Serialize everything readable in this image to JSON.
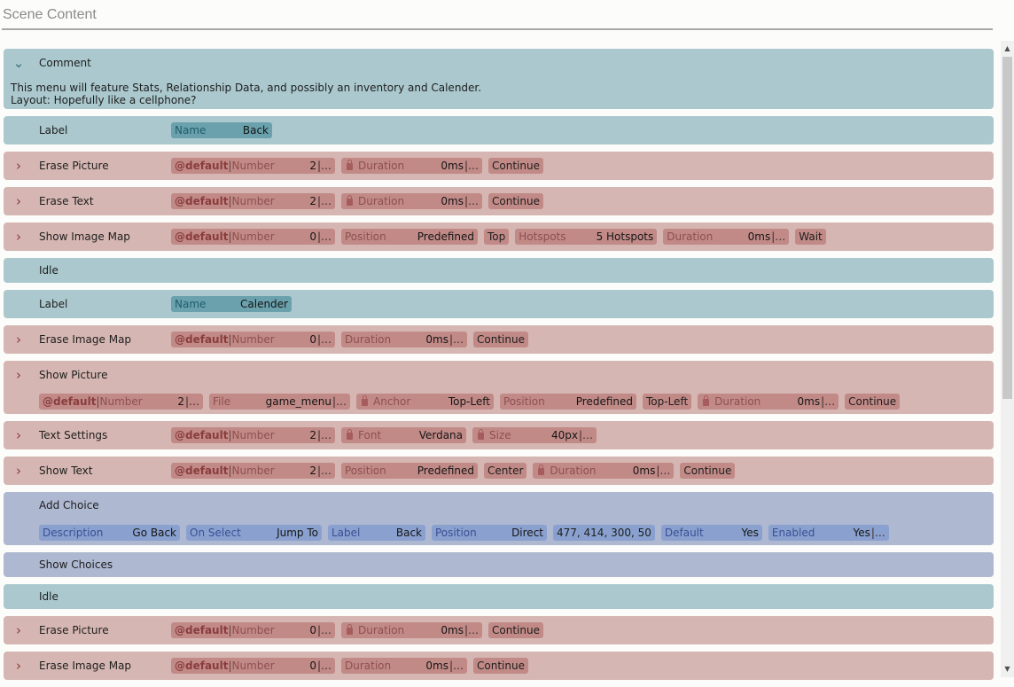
{
  "header": {
    "title": "Scene Content"
  },
  "comment": {
    "name": "Comment",
    "line1": "This menu will feature Stats, Relationship Data, and possibly an inventory and Calender.",
    "line2": "Layout: Hopefully like a cellphone?"
  },
  "label1": {
    "name": "Label",
    "p_name_label": "Name",
    "p_name_value": "Back"
  },
  "erase_picture_1": {
    "name": "Erase Picture",
    "ph": "@default",
    "number_label": "Number",
    "number_value": "2",
    "duration_label": "Duration",
    "duration_value": "0ms",
    "continue": "Continue"
  },
  "erase_text": {
    "name": "Erase Text",
    "ph": "@default",
    "number_label": "Number",
    "number_value": "2",
    "duration_label": "Duration",
    "duration_value": "0ms",
    "continue": "Continue"
  },
  "show_image_map": {
    "name": "Show Image Map",
    "ph": "@default",
    "number_label": "Number",
    "number_value": "0",
    "position_label": "Position",
    "position_value": "Predefined",
    "position_option": "Top",
    "hotspots_label": "Hotspots",
    "hotspots_value": "5 Hotspots",
    "duration_label": "Duration",
    "duration_value": "0ms",
    "wait": "Wait"
  },
  "idle1": {
    "name": "Idle"
  },
  "label2": {
    "name": "Label",
    "p_name_label": "Name",
    "p_name_value": "Calender"
  },
  "erase_image_map_1": {
    "name": "Erase Image Map",
    "ph": "@default",
    "number_label": "Number",
    "number_value": "0",
    "duration_label": "Duration",
    "duration_value": "0ms",
    "continue": "Continue"
  },
  "show_picture": {
    "name": "Show Picture",
    "ph": "@default",
    "number_label": "Number",
    "number_value": "2",
    "file_label": "File",
    "file_value": "game_menu",
    "anchor_label": "Anchor",
    "anchor_value": "Top-Left",
    "position_label": "Position",
    "position_value": "Predefined",
    "position_option": "Top-Left",
    "duration_label": "Duration",
    "duration_value": "0ms",
    "continue": "Continue"
  },
  "text_settings": {
    "name": "Text Settings",
    "ph": "@default",
    "number_label": "Number",
    "number_value": "2",
    "font_label": "Font",
    "font_value": "Verdana",
    "size_label": "Size",
    "size_value": "40px"
  },
  "show_text": {
    "name": "Show Text",
    "ph": "@default",
    "number_label": "Number",
    "number_value": "2",
    "position_label": "Position",
    "position_value": "Predefined",
    "position_option": "Center",
    "duration_label": "Duration",
    "duration_value": "0ms",
    "continue": "Continue"
  },
  "add_choice": {
    "name": "Add Choice",
    "description_label": "Description",
    "description_value": "Go Back",
    "onselect_label": "On Select",
    "onselect_value": "Jump To",
    "label_label": "Label",
    "label_value": "Back",
    "position_label": "Position",
    "position_value": "Direct",
    "coords": "477, 414, 300, 50",
    "default_label": "Default",
    "default_value": "Yes",
    "enabled_label": "Enabled",
    "enabled_value": "Yes"
  },
  "show_choices": {
    "name": "Show Choices"
  },
  "idle2": {
    "name": "Idle"
  },
  "erase_picture_2": {
    "name": "Erase Picture",
    "ph": "@default",
    "number_label": "Number",
    "number_value": "0",
    "duration_label": "Duration",
    "duration_value": "0ms",
    "continue": "Continue"
  },
  "erase_image_map_2": {
    "name": "Erase Image Map",
    "ph": "@default",
    "number_label": "Number",
    "number_value": "0",
    "duration_label": "Duration",
    "duration_value": "0ms",
    "continue": "Continue"
  },
  "icons": {
    "expand": "chevron-right-icon",
    "collapse": "chevron-down-icon",
    "lock": "lock-icon"
  },
  "colors": {
    "command_row": "#d5b6b2",
    "flow_row": "#aac8cd",
    "choice_row": "#aeb8d1",
    "command_chip": "#c18a87",
    "flow_chip": "#6aa1ad",
    "choice_chip": "#8aa1cf"
  }
}
